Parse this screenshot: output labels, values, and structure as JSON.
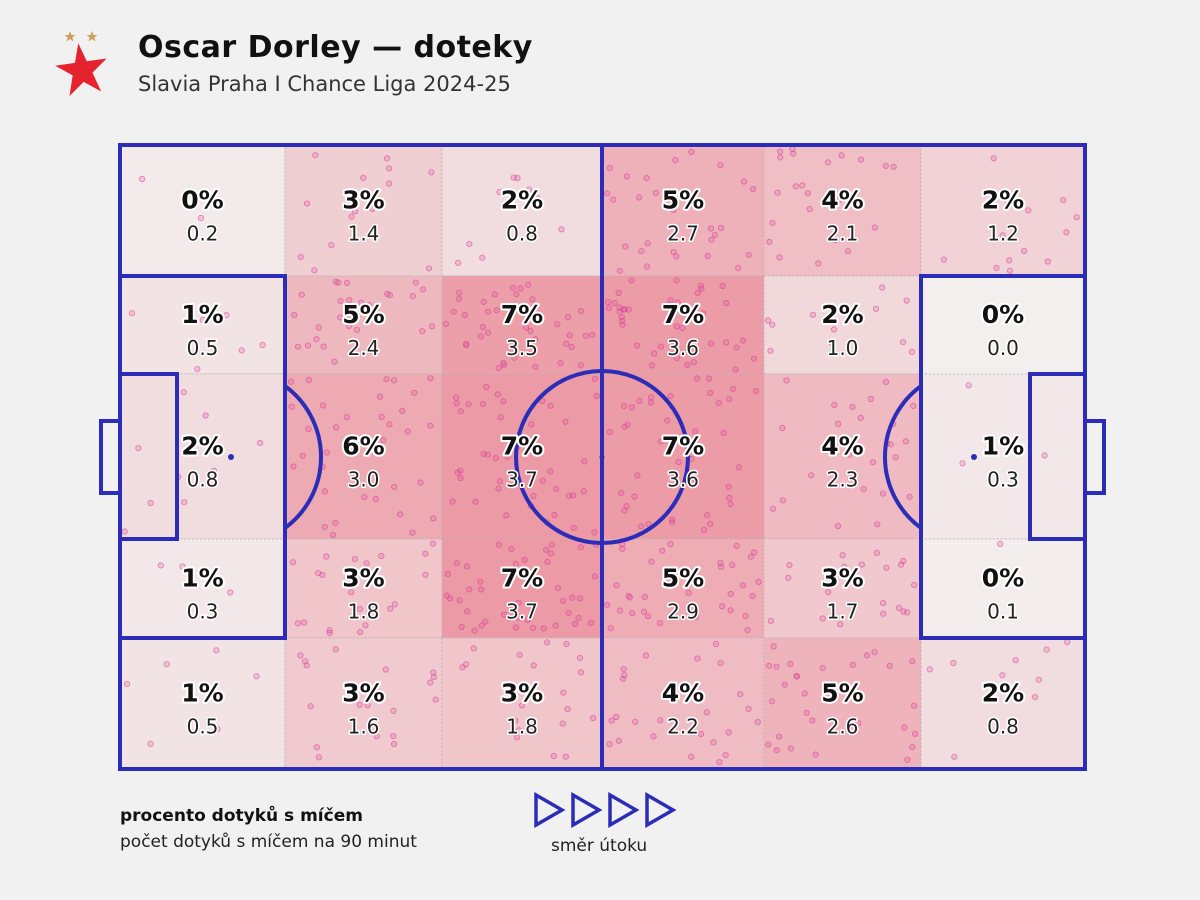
{
  "header": {
    "title": "Oscar Dorley — doteky",
    "subtitle": "Slavia Praha I Chance Liga 2024-25"
  },
  "legend": {
    "percent_label": "procento dotyků s míčem",
    "per90_label": "počet dotyků s míčem na 90 minut",
    "direction_label": "směr útoku"
  },
  "colors": {
    "background": "#f2f1f1",
    "pitch_lines": "#2b2db8",
    "heat_low": "#f3efef",
    "heat_high": "#ec9aa5",
    "touch_dots": "#e0479a",
    "logo_star": "#e5232f",
    "logo_small_stars": "#c9a15a"
  },
  "chart_data": {
    "type": "heatmap",
    "title": "Oscar Dorley — doteky",
    "subtitle": "Slavia Praha I Chance Liga 2024-25",
    "cols": 6,
    "rows": 5,
    "cells": [
      [
        {
          "pct": "0%",
          "per90": "0.2"
        },
        {
          "pct": "3%",
          "per90": "1.4"
        },
        {
          "pct": "2%",
          "per90": "0.8"
        },
        {
          "pct": "5%",
          "per90": "2.7"
        },
        {
          "pct": "4%",
          "per90": "2.1"
        },
        {
          "pct": "2%",
          "per90": "1.2"
        }
      ],
      [
        {
          "pct": "1%",
          "per90": "0.5"
        },
        {
          "pct": "5%",
          "per90": "2.4"
        },
        {
          "pct": "7%",
          "per90": "3.5"
        },
        {
          "pct": "7%",
          "per90": "3.6"
        },
        {
          "pct": "2%",
          "per90": "1.0"
        },
        {
          "pct": "0%",
          "per90": "0.0"
        }
      ],
      [
        {
          "pct": "2%",
          "per90": "0.8"
        },
        {
          "pct": "6%",
          "per90": "3.0"
        },
        {
          "pct": "7%",
          "per90": "3.7"
        },
        {
          "pct": "7%",
          "per90": "3.6"
        },
        {
          "pct": "4%",
          "per90": "2.3"
        },
        {
          "pct": "1%",
          "per90": "0.3"
        }
      ],
      [
        {
          "pct": "1%",
          "per90": "0.3"
        },
        {
          "pct": "3%",
          "per90": "1.8"
        },
        {
          "pct": "7%",
          "per90": "3.7"
        },
        {
          "pct": "5%",
          "per90": "2.9"
        },
        {
          "pct": "3%",
          "per90": "1.7"
        },
        {
          "pct": "0%",
          "per90": "0.1"
        }
      ],
      [
        {
          "pct": "1%",
          "per90": "0.5"
        },
        {
          "pct": "3%",
          "per90": "1.6"
        },
        {
          "pct": "3%",
          "per90": "1.8"
        },
        {
          "pct": "4%",
          "per90": "2.2"
        },
        {
          "pct": "5%",
          "per90": "2.6"
        },
        {
          "pct": "2%",
          "per90": "0.8"
        }
      ]
    ]
  }
}
